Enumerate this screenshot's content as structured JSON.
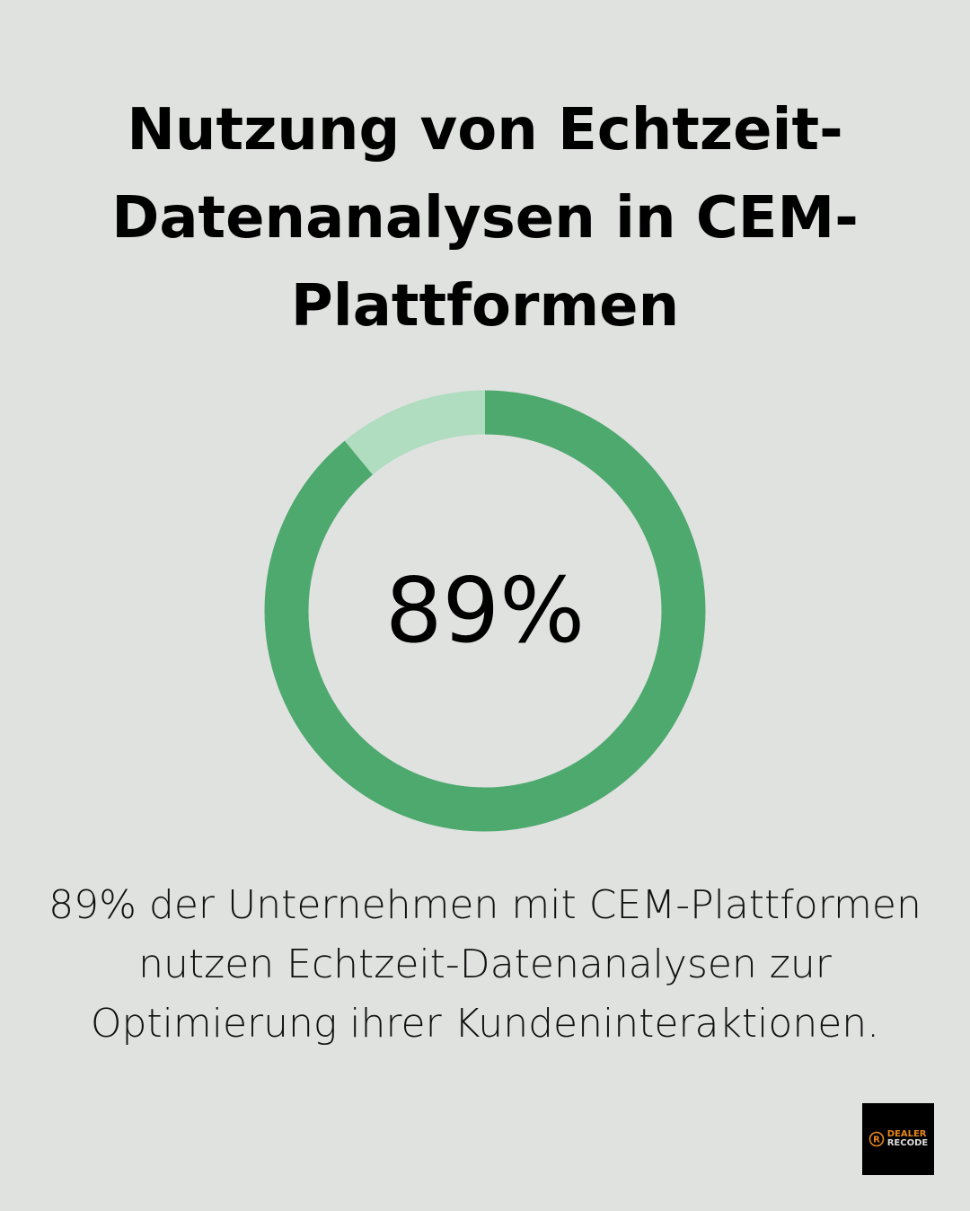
{
  "title": "Nutzung von Echtzeit-Datenanalysen in CEM-Plattformen",
  "chart_data": {
    "type": "pie",
    "variant": "donut",
    "title": "Nutzung von Echtzeit-Datenanalysen in CEM-Plattformen",
    "center_label": "89%",
    "slices": [
      {
        "value": 89,
        "color": "#4ea96e"
      },
      {
        "value": 11,
        "color": "#b0dcc0"
      }
    ]
  },
  "caption": "89% der Unternehmen mit CEM-Plattformen nutzen Echtzeit-Datenanalysen zur Optimierung ihrer Kundeninteraktionen.",
  "logo": {
    "line1": "DEALER",
    "line2": "RECODE",
    "accent": "#e8861a"
  }
}
